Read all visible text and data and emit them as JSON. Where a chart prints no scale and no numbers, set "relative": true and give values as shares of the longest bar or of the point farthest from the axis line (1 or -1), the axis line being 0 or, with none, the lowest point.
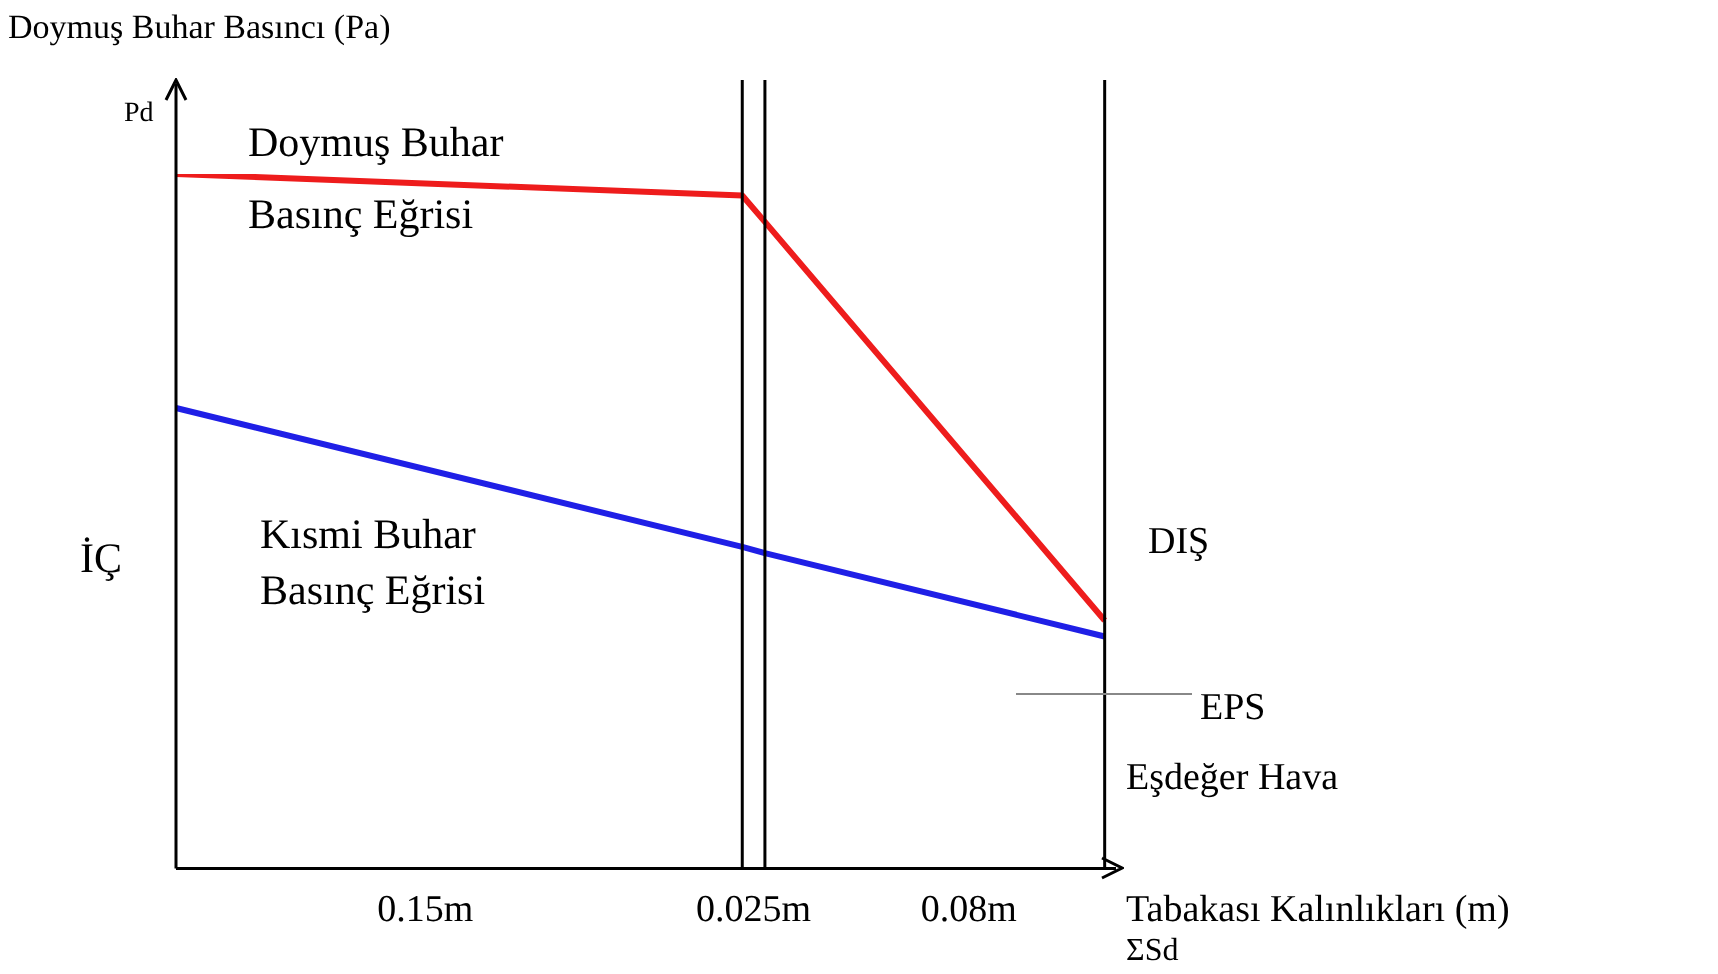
{
  "chart_data": {
    "type": "line",
    "relative": true,
    "ylabel": "Doymuş Buhar Basıncı (Pa)",
    "xlabel": "Eşdeğer Hava Tabakası Kalınlıkları (m)",
    "categories": [
      null,
      null,
      null,
      null,
      null,
      null,
      null,
      null,
      null,
      null,
      null,
      null,
      null,
      null,
      null,
      null,
      null,
      null,
      null,
      null,
      null,
      null,
      "0.15m",
      null,
      null,
      null,
      null,
      null,
      null,
      null,
      null,
      null,
      null,
      null,
      null,
      null,
      null,
      null,
      null,
      null,
      null,
      null,
      null,
      null,
      null,
      null,
      null,
      null,
      null,
      null,
      null,
      "0.025m",
      null,
      null,
      null,
      null,
      null,
      null,
      null,
      null,
      null,
      null,
      null,
      null,
      null,
      null,
      null,
      null,
      null,
      null,
      "0.08m",
      null,
      null,
      null,
      null,
      null,
      null,
      null,
      null,
      null,
      null,
      null,
      null,
      null
    ],
    "series": [
      {
        "name": "Doymuş Buhar Basınç Eğrisi",
        "color": "#ee1c1c",
        "values": [
          1,
          null,
          null,
          null,
          null,
          null,
          null,
          null,
          null,
          null,
          null,
          null,
          null,
          null,
          null,
          null,
          null,
          null,
          null,
          null,
          null,
          null,
          null,
          null,
          null,
          null,
          null,
          null,
          null,
          null,
          null,
          null,
          null,
          null,
          null,
          null,
          null,
          null,
          null,
          null,
          null,
          null,
          null,
          null,
          null,
          null,
          null,
          null,
          null,
          null,
          0.969,
          null,
          0.931,
          null,
          null,
          null,
          null,
          null,
          null,
          null,
          null,
          null,
          null,
          null,
          null,
          null,
          null,
          null,
          null,
          null,
          null,
          null,
          null,
          null,
          null,
          null,
          null,
          null,
          null,
          null,
          null,
          null,
          0.357,
          null
        ]
      },
      {
        "name": "Kısmi Buhar Basınç Eğrisi",
        "color": "#1f1fe6",
        "values": [
          0.663,
          null,
          null,
          null,
          null,
          null,
          null,
          null,
          null,
          null,
          null,
          null,
          null,
          null,
          null,
          null,
          null,
          null,
          null,
          null,
          null,
          null,
          null,
          null,
          null,
          null,
          null,
          null,
          null,
          null,
          null,
          null,
          null,
          null,
          null,
          null,
          null,
          null,
          null,
          null,
          null,
          null,
          null,
          null,
          null,
          null,
          null,
          null,
          null,
          null,
          0.463,
          null,
          0.454,
          null,
          null,
          null,
          null,
          null,
          null,
          null,
          null,
          null,
          null,
          null,
          null,
          null,
          null,
          null,
          null,
          null,
          null,
          null,
          null,
          null,
          null,
          null,
          null,
          null,
          null,
          null,
          null,
          null,
          0.334,
          null
        ]
      }
    ],
    "annotations": [
      "Pd",
      "İÇ",
      "DIŞ",
      "EPS",
      "ΣSd"
    ],
    "grid": false,
    "legend": false,
    "marker": "none",
    "line_style": "solid"
  }
}
